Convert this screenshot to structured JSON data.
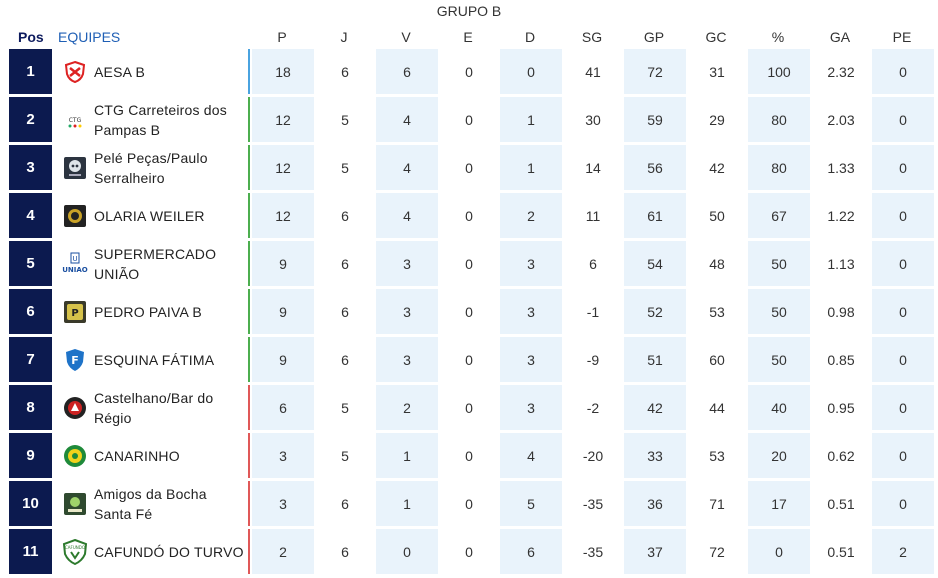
{
  "group_title": "GRUPO B",
  "header": {
    "pos": "Pos",
    "team": "EQUIPES",
    "stats": [
      "P",
      "J",
      "V",
      "E",
      "D",
      "SG",
      "GP",
      "GC",
      "%",
      "GA",
      "PE"
    ]
  },
  "zone_colors": {
    "blue": "#4aa3e0",
    "green": "#4cae4f",
    "red": "#e05858",
    "pos_bg": "#0c1a4f",
    "shade": "#e9f3fb"
  },
  "rows": [
    {
      "pos": "1",
      "team": "AESA B",
      "badge": "shield-red-icon",
      "zone": "blue",
      "stats": [
        "18",
        "6",
        "6",
        "0",
        "0",
        "41",
        "72",
        "31",
        "100",
        "2.32",
        "0"
      ]
    },
    {
      "pos": "2",
      "team": "CTG Carreteiros dos Pampas B",
      "badge": "ctg-logo-icon",
      "zone": "green",
      "stats": [
        "12",
        "5",
        "4",
        "0",
        "1",
        "30",
        "59",
        "29",
        "80",
        "2.03",
        "0"
      ]
    },
    {
      "pos": "3",
      "team": "Pelé Peças/Paulo Serralheiro",
      "badge": "skull-logo-icon",
      "zone": "green",
      "stats": [
        "12",
        "5",
        "4",
        "0",
        "1",
        "14",
        "56",
        "42",
        "80",
        "1.33",
        "0"
      ]
    },
    {
      "pos": "4",
      "team": "OLARIA WEILER",
      "badge": "olaria-logo-icon",
      "zone": "green",
      "stats": [
        "12",
        "6",
        "4",
        "0",
        "2",
        "11",
        "61",
        "50",
        "67",
        "1.22",
        "0"
      ]
    },
    {
      "pos": "5",
      "team": "SUPERMERCADO UNIÃO",
      "badge": "uniao-logo-icon",
      "zone": "green",
      "stats": [
        "9",
        "6",
        "3",
        "0",
        "3",
        "6",
        "54",
        "48",
        "50",
        "1.13",
        "0"
      ]
    },
    {
      "pos": "6",
      "team": "PEDRO PAIVA B",
      "badge": "pp-logo-icon",
      "zone": "green",
      "stats": [
        "9",
        "6",
        "3",
        "0",
        "3",
        "-1",
        "52",
        "53",
        "50",
        "0.98",
        "0"
      ]
    },
    {
      "pos": "7",
      "team": "ESQUINA FÁTIMA",
      "badge": "f-shield-icon",
      "zone": "green",
      "stats": [
        "9",
        "6",
        "3",
        "0",
        "3",
        "-9",
        "51",
        "60",
        "50",
        "0.85",
        "0"
      ]
    },
    {
      "pos": "8",
      "team": "Castelhano/Bar do Régio",
      "badge": "castelhano-logo-icon",
      "zone": "red",
      "stats": [
        "6",
        "5",
        "2",
        "0",
        "3",
        "-2",
        "42",
        "44",
        "40",
        "0.95",
        "0"
      ]
    },
    {
      "pos": "9",
      "team": "CANARINHO",
      "badge": "canarinho-logo-icon",
      "zone": "red",
      "stats": [
        "3",
        "5",
        "1",
        "0",
        "4",
        "-20",
        "33",
        "53",
        "20",
        "0.62",
        "0"
      ]
    },
    {
      "pos": "10",
      "team": "Amigos da Bocha Santa Fé",
      "badge": "bocha-logo-icon",
      "zone": "red",
      "stats": [
        "3",
        "6",
        "1",
        "0",
        "5",
        "-35",
        "36",
        "71",
        "17",
        "0.51",
        "0"
      ]
    },
    {
      "pos": "11",
      "team": "CAFUNDÓ DO TURVO",
      "badge": "cafundo-logo-icon",
      "zone": "red",
      "stats": [
        "2",
        "6",
        "0",
        "0",
        "6",
        "-35",
        "37",
        "72",
        "0",
        "0.51",
        "2"
      ]
    }
  ]
}
